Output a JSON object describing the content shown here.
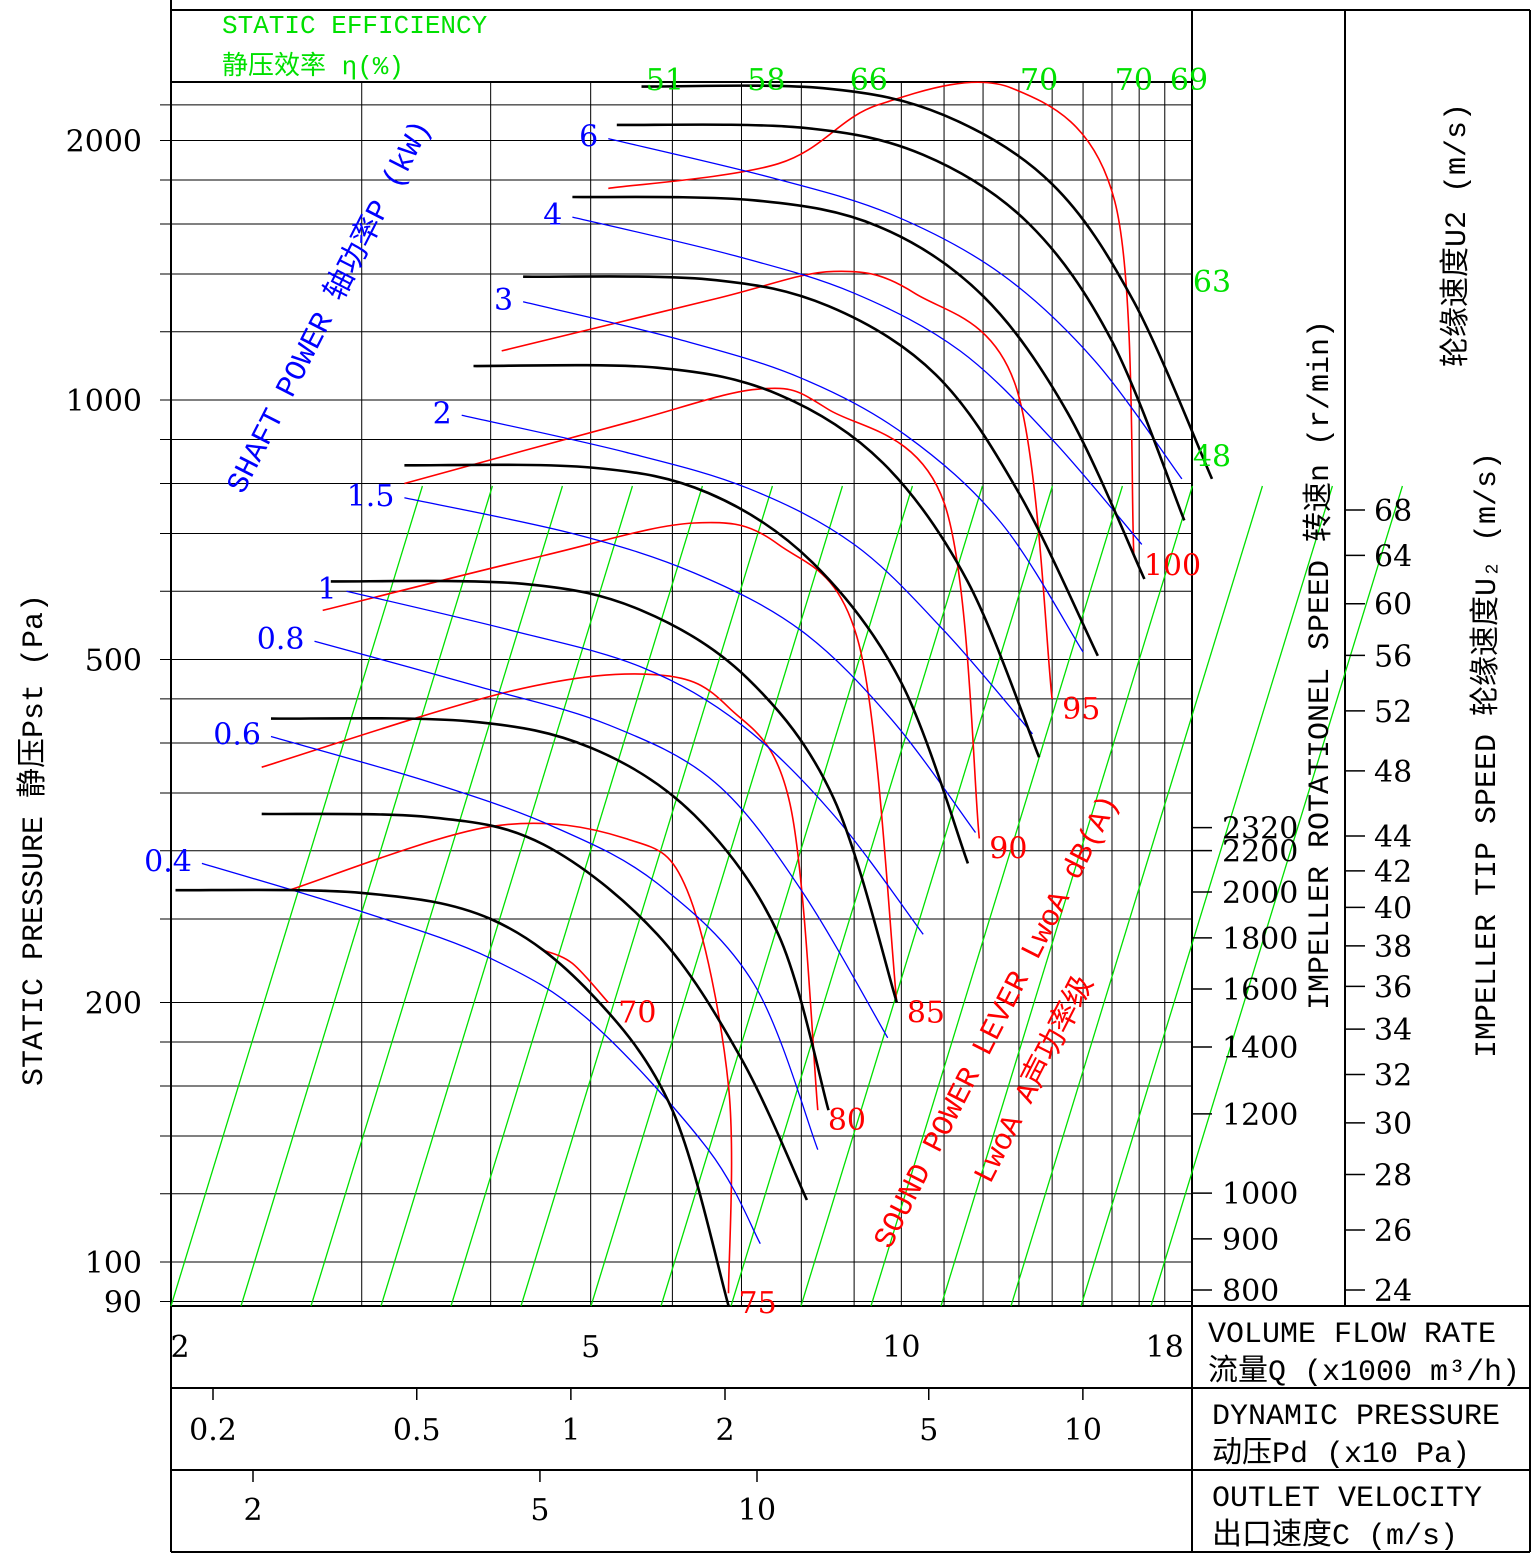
{
  "colors": {
    "frame": "#000000",
    "speed_curve": "#000000",
    "power_curve": "#0000ff",
    "sound_curve": "#ff0000",
    "efficiency_line": "#00e000",
    "efficiency_text": "#00e000",
    "power_text": "#0000ff",
    "sound_text": "#ff0000"
  },
  "titles": {
    "static_efficiency_en": "STATIC EFFICIENCY",
    "static_efficiency_cn": "静压效率 η(%)",
    "shaft_power": "SHAFT POWER 轴功率P (kW)",
    "sound_power_1": "SOUND POWER LEVER LwoA  dB(A)",
    "sound_power_2": "LwoA A声功率级",
    "static_pressure": "STATIC PRESSURE 静压Pst (Pa)",
    "rotational_speed": "IMPELLER ROTATIONEL SPEED 转速n (r/min)",
    "tip_speed_cn": "轮缘速度U2 (m/s)",
    "tip_speed_en": "IMPELLER TIP SPEED 轮缘速度U₂ (m/s)",
    "volume_flow_en": "VOLUME FLOW RATE",
    "volume_flow_cn": "流量Q (x1000 m³/h)",
    "dynamic_pressure_en": "DYNAMIC PRESSURE",
    "dynamic_pressure_cn": "动压Pd (x10 Pa)",
    "outlet_velocity_en": "OUTLET VELOCITY",
    "outlet_velocity_cn": "出口速度C (m/s)"
  },
  "chart_data": {
    "type": "line",
    "x_scale": "log",
    "y_scale": "log",
    "xlabel": "流量Q (x1000 m³/h)",
    "ylabel": "STATIC PRESSURE 静压Pst (Pa)",
    "xlim": [
      1.98,
      20
    ],
    "ylim": [
      88,
      2500
    ],
    "x_ticks": [
      {
        "value": 2,
        "label": "2"
      },
      {
        "value": 5,
        "label": "5"
      },
      {
        "value": 10,
        "label": "10"
      },
      {
        "value": 18,
        "label": "18"
      }
    ],
    "y_ticks": [
      {
        "value": 90,
        "label": "90"
      },
      {
        "value": 100,
        "label": "100"
      },
      {
        "value": 200,
        "label": "200"
      },
      {
        "value": 500,
        "label": "500"
      },
      {
        "value": 1000,
        "label": "1000"
      },
      {
        "value": 2000,
        "label": "2000"
      }
    ],
    "dynamic_pressure_axis": {
      "ticks": [
        {
          "value": 0.2,
          "label": "0.2"
        },
        {
          "value": 0.5,
          "label": "0.5"
        },
        {
          "value": 1,
          "label": "1"
        },
        {
          "value": 2,
          "label": "2"
        },
        {
          "value": 5,
          "label": "5"
        },
        {
          "value": 10,
          "label": "10"
        }
      ]
    },
    "outlet_velocity_axis": {
      "ticks": [
        {
          "value": 2,
          "label": "2"
        },
        {
          "value": 5,
          "label": "5"
        },
        {
          "value": 10,
          "label": "10"
        }
      ]
    },
    "speed_axis": {
      "ticks": [
        {
          "value": 800,
          "label": "800"
        },
        {
          "value": 900,
          "label": "900"
        },
        {
          "value": 1000,
          "label": "1000"
        },
        {
          "value": 1200,
          "label": "1200"
        },
        {
          "value": 1400,
          "label": "1400"
        },
        {
          "value": 1600,
          "label": "1600"
        },
        {
          "value": 1800,
          "label": "1800"
        },
        {
          "value": 2000,
          "label": "2000"
        },
        {
          "value": 2200,
          "label": "2200"
        },
        {
          "value": 2320,
          "label": "2320"
        }
      ]
    },
    "tip_speed_axis": {
      "ticks": [
        {
          "value": 24,
          "label": "24"
        },
        {
          "value": 26,
          "label": "26"
        },
        {
          "value": 28,
          "label": "28"
        },
        {
          "value": 30,
          "label": "30"
        },
        {
          "value": 32,
          "label": "32"
        },
        {
          "value": 34,
          "label": "34"
        },
        {
          "value": 36,
          "label": "36"
        },
        {
          "value": 38,
          "label": "38"
        },
        {
          "value": 40,
          "label": "40"
        },
        {
          "value": 42,
          "label": "42"
        },
        {
          "value": 44,
          "label": "44"
        },
        {
          "value": 48,
          "label": "48"
        },
        {
          "value": 52,
          "label": "52"
        },
        {
          "value": 56,
          "label": "56"
        },
        {
          "value": 60,
          "label": "60"
        },
        {
          "value": 64,
          "label": "64"
        },
        {
          "value": 68,
          "label": "68"
        }
      ]
    },
    "efficiency_labels": [
      {
        "label": "51",
        "x": 5.9,
        "y": 2350
      },
      {
        "label": "58",
        "x": 7.4,
        "y": 2350
      },
      {
        "label": "66",
        "x": 9.3,
        "y": 2350
      },
      {
        "label": "70",
        "x": 13.6,
        "y": 2350
      },
      {
        "label": "70",
        "x": 16.8,
        "y": 2350
      },
      {
        "label": "69",
        "x": 19.0,
        "y": 2350
      },
      {
        "label": "63",
        "x": 20.0,
        "y": 1370
      },
      {
        "label": "48",
        "x": 20.0,
        "y": 860
      }
    ],
    "speed_curves": [
      {
        "name": "800",
        "points": [
          [
            1.98,
            270
          ],
          [
            3,
            268
          ],
          [
            4,
            250
          ],
          [
            5,
            205
          ],
          [
            6,
            150
          ],
          [
            6.8,
            89
          ]
        ]
      },
      {
        "name": "900",
        "points": [
          [
            2.4,
            331
          ],
          [
            3.5,
            328
          ],
          [
            4.5,
            305
          ],
          [
            5.8,
            240
          ],
          [
            7,
            172
          ],
          [
            8.1,
            118
          ]
        ]
      },
      {
        "name": "1000",
        "points": [
          [
            2.45,
            427
          ],
          [
            3.8,
            424
          ],
          [
            5,
            395
          ],
          [
            6.3,
            330
          ],
          [
            7.6,
            240
          ],
          [
            8.5,
            150
          ]
        ]
      },
      {
        "name": "1200",
        "points": [
          [
            2.8,
            616
          ],
          [
            4.3,
            612
          ],
          [
            5.6,
            570
          ],
          [
            7.1,
            475
          ],
          [
            8.6,
            345
          ],
          [
            9.9,
            200
          ]
        ]
      },
      {
        "name": "1400",
        "points": [
          [
            3.3,
            840
          ],
          [
            5,
            835
          ],
          [
            6.5,
            780
          ],
          [
            8.2,
            648
          ],
          [
            10,
            470
          ],
          [
            11.6,
            290
          ]
        ]
      },
      {
        "name": "1600",
        "points": [
          [
            3.85,
            1095
          ],
          [
            5.8,
            1090
          ],
          [
            7.6,
            1015
          ],
          [
            9.6,
            845
          ],
          [
            11.6,
            615
          ],
          [
            13.6,
            385
          ]
        ]
      },
      {
        "name": "1800",
        "points": [
          [
            4.3,
            1390
          ],
          [
            6.5,
            1380
          ],
          [
            8.5,
            1285
          ],
          [
            10.8,
            1070
          ],
          [
            13,
            780
          ],
          [
            15.5,
            505
          ]
        ]
      },
      {
        "name": "2000",
        "points": [
          [
            4.8,
            1720
          ],
          [
            7.2,
            1705
          ],
          [
            9.5,
            1590
          ],
          [
            12,
            1320
          ],
          [
            14.5,
            965
          ],
          [
            17.2,
            620
          ]
        ]
      },
      {
        "name": "2200",
        "points": [
          [
            5.3,
            2085
          ],
          [
            8,
            2070
          ],
          [
            10.5,
            1925
          ],
          [
            13.3,
            1600
          ],
          [
            16,
            1170
          ],
          [
            18.8,
            725
          ]
        ]
      },
      {
        "name": "2320",
        "points": [
          [
            5.6,
            2310
          ],
          [
            8.4,
            2300
          ],
          [
            11,
            2140
          ],
          [
            14,
            1780
          ],
          [
            16.8,
            1300
          ],
          [
            20,
            810
          ]
        ]
      }
    ],
    "power_curves": [
      {
        "name": "0.4",
        "points": [
          [
            2.1,
            290
          ],
          [
            3,
            255
          ],
          [
            4,
            225
          ],
          [
            5,
            190
          ],
          [
            6.5,
            135
          ],
          [
            7.3,
            105
          ]
        ]
      },
      {
        "name": "0.6",
        "points": [
          [
            2.45,
            407
          ],
          [
            3.5,
            360
          ],
          [
            4.6,
            320
          ],
          [
            5.8,
            275
          ],
          [
            7.2,
            210
          ],
          [
            8.3,
            135
          ]
        ]
      },
      {
        "name": "0.8",
        "points": [
          [
            2.7,
            525
          ],
          [
            3.9,
            465
          ],
          [
            5.2,
            420
          ],
          [
            6.6,
            360
          ],
          [
            8,
            270
          ],
          [
            9.7,
            182
          ]
        ]
      },
      {
        "name": "1",
        "points": [
          [
            2.9,
            600
          ],
          [
            4.2,
            540
          ],
          [
            5.6,
            490
          ],
          [
            7,
            420
          ],
          [
            8.6,
            330
          ],
          [
            10.5,
            240
          ]
        ]
      },
      {
        "name": "1.5",
        "points": [
          [
            3.3,
            770
          ],
          [
            4.8,
            700
          ],
          [
            6.3,
            630
          ],
          [
            8,
            540
          ],
          [
            9.8,
            425
          ],
          [
            11.8,
            315
          ]
        ]
      },
      {
        "name": "2",
        "points": [
          [
            3.75,
            960
          ],
          [
            5.4,
            870
          ],
          [
            7.1,
            790
          ],
          [
            9,
            680
          ],
          [
            11,
            540
          ],
          [
            13.4,
            410
          ]
        ]
      },
      {
        "name": "3",
        "points": [
          [
            4.3,
            1300
          ],
          [
            6.1,
            1175
          ],
          [
            8,
            1060
          ],
          [
            10.1,
            910
          ],
          [
            12.5,
            720
          ],
          [
            15,
            510
          ]
        ]
      },
      {
        "name": "4",
        "points": [
          [
            4.8,
            1630
          ],
          [
            6.9,
            1470
          ],
          [
            9,
            1330
          ],
          [
            11.4,
            1140
          ],
          [
            14,
            900
          ],
          [
            17.1,
            680
          ]
        ]
      },
      {
        "name": "6",
        "points": [
          [
            5.2,
            2010
          ],
          [
            7.5,
            1810
          ],
          [
            9.8,
            1640
          ],
          [
            12.5,
            1400
          ],
          [
            15.4,
            1110
          ],
          [
            18.7,
            810
          ]
        ]
      }
    ],
    "sound_curves": [
      {
        "name": "70",
        "points": [
          [
            4.5,
            230
          ],
          [
            4.8,
            222
          ],
          [
            5.2,
            200
          ]
        ]
      },
      {
        "name": "75",
        "points": [
          [
            2.55,
            270
          ],
          [
            4,
            320
          ],
          [
            5.4,
            310
          ],
          [
            6.2,
            270
          ],
          [
            6.8,
            160
          ],
          [
            6.8,
            92
          ]
        ]
      },
      {
        "name": "80",
        "points": [
          [
            2.4,
            375
          ],
          [
            4.2,
            460
          ],
          [
            5.8,
            480
          ],
          [
            6.8,
            440
          ],
          [
            7.8,
            340
          ],
          [
            8.3,
            150
          ]
        ]
      },
      {
        "name": "85",
        "points": [
          [
            2.75,
            570
          ],
          [
            4.5,
            660
          ],
          [
            6.3,
            720
          ],
          [
            7.6,
            680
          ],
          [
            9.1,
            520
          ],
          [
            9.9,
            200
          ]
        ]
      },
      {
        "name": "90",
        "points": [
          [
            3.3,
            800
          ],
          [
            5.4,
            940
          ],
          [
            7.3,
            1030
          ],
          [
            8.5,
            975
          ],
          [
            11,
            760
          ],
          [
            11.9,
            310
          ]
        ]
      },
      {
        "name": "95",
        "points": [
          [
            4.1,
            1140
          ],
          [
            6.6,
            1310
          ],
          [
            8.6,
            1410
          ],
          [
            10.3,
            1330
          ],
          [
            12.9,
            1040
          ],
          [
            14.0,
            450
          ]
        ]
      },
      {
        "name": "100",
        "points": [
          [
            5.2,
            1760
          ],
          [
            7.6,
            1880
          ],
          [
            9.5,
            2200
          ],
          [
            12.8,
            2300
          ],
          [
            16.1,
            1700
          ],
          [
            16.8,
            660
          ]
        ]
      }
    ]
  }
}
